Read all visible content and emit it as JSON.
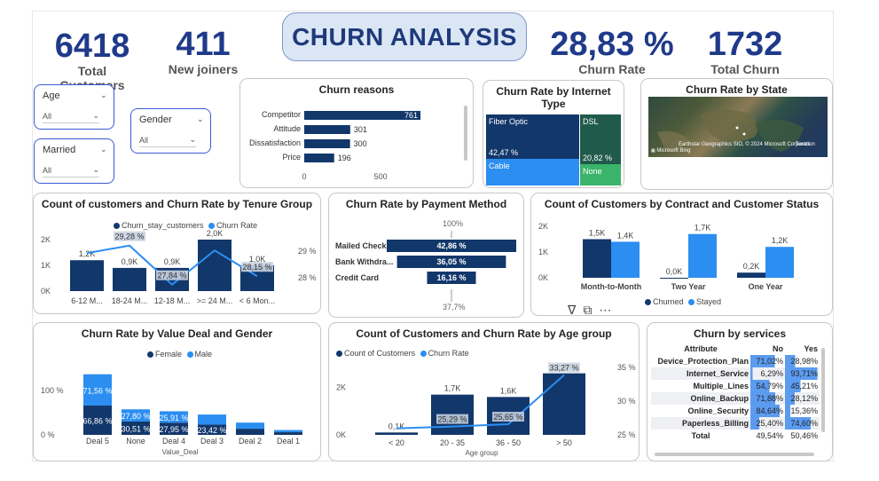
{
  "header": {
    "title": "CHURN ANALYSIS"
  },
  "kpis": {
    "total_customers": {
      "value": "6418",
      "label": "Total Customers"
    },
    "new_joiners": {
      "value": "411",
      "label": "New joiners"
    },
    "churn_rate": {
      "value": "28,83 %",
      "label": "Churn Rate"
    },
    "total_churn": {
      "value": "1732",
      "label": "Total Churn"
    }
  },
  "slicers": {
    "age": {
      "label": "Age",
      "value": "All"
    },
    "married": {
      "label": "Married",
      "value": "All"
    },
    "gender": {
      "label": "Gender",
      "value": "All"
    }
  },
  "churn_reasons": {
    "title": "Churn reasons"
  },
  "internet_type": {
    "title": "Churn Rate by Internet Type"
  },
  "state": {
    "title": "Churn Rate by State",
    "attribution": "Earthstar Geographics SIO, © 2024 Microsoft Corporation",
    "terms": "Terms",
    "brand": "Microsoft Bing"
  },
  "tenure": {
    "title": "Count of customers and Churn Rate by Tenure Group",
    "legend": [
      "Churn_stay_customers",
      "Churn Rate"
    ]
  },
  "payment": {
    "title": "Churn Rate by Payment Method",
    "top_label": "100%",
    "bottom_label": "37,7%"
  },
  "contract": {
    "title": "Count of Customers by Contract and Customer Status",
    "legend": [
      "Churned",
      "Stayed"
    ]
  },
  "value_deal": {
    "title": "Churn Rate by Value Deal and Gender",
    "legend": [
      "Female",
      "Male"
    ]
  },
  "age_group": {
    "title": "Count of Customers and Churn Rate by Age group",
    "legend": [
      "Count of Customers",
      "Churn Rate"
    ]
  },
  "services": {
    "title": "Churn by services",
    "columns": [
      "Attribute",
      "No",
      "Yes"
    ],
    "rows": [
      {
        "attr": "Device_Protection_Plan",
        "no": "71,02%",
        "yes": "28,98%",
        "no_v": 71.02,
        "yes_v": 28.98
      },
      {
        "attr": "Internet_Service",
        "no": "6,29%",
        "yes": "93,71%",
        "no_v": 6.29,
        "yes_v": 93.71
      },
      {
        "attr": "Multiple_Lines",
        "no": "54,79%",
        "yes": "45,21%",
        "no_v": 54.79,
        "yes_v": 45.21
      },
      {
        "attr": "Online_Backup",
        "no": "71,88%",
        "yes": "28,12%",
        "no_v": 71.88,
        "yes_v": 28.12
      },
      {
        "attr": "Online_Security",
        "no": "84,64%",
        "yes": "15,36%",
        "no_v": 84.64,
        "yes_v": 15.36
      },
      {
        "attr": "Paperless_Billing",
        "no": "25,40%",
        "yes": "74,60%",
        "no_v": 25.4,
        "yes_v": 74.6
      }
    ],
    "total": {
      "attr": "Total",
      "no": "49,54%",
      "yes": "50,46%"
    }
  },
  "chart_data": [
    {
      "type": "bar",
      "id": "churn_reasons",
      "title": "Churn reasons",
      "categories": [
        "Competitor",
        "Attitude",
        "Dissatisfaction",
        "Price"
      ],
      "values": [
        761,
        301,
        300,
        196
      ],
      "labels": [
        "761",
        "301",
        "300",
        "196"
      ],
      "ticks": [
        "0",
        "500"
      ],
      "xlim": [
        0,
        900
      ]
    },
    {
      "type": "heatmap",
      "id": "internet_type",
      "title": "Churn Rate by Internet Type",
      "categories": [
        "Fiber Optic",
        "Cable",
        "DSL",
        "None"
      ],
      "values": [
        42.47,
        null,
        20.82,
        null
      ],
      "labels": [
        "42,47 %",
        "",
        "20,82 %",
        ""
      ],
      "colors": {
        "Fiber Optic": "#12376b",
        "Cable": "#2b8ef0",
        "DSL": "#1f5a4a",
        "None": "#3ab46a"
      }
    },
    {
      "type": "bar",
      "id": "tenure",
      "title": "Count of customers and Churn Rate by Tenure Group",
      "categories": [
        "6-12 M...",
        "18-24 M...",
        "12-18 M...",
        ">= 24 M...",
        "< 6 Mon..."
      ],
      "series": [
        {
          "name": "Churn_stay_customers",
          "values": [
            1200,
            900,
            900,
            2000,
            1000
          ],
          "labels": [
            "1,2K",
            "0,9K",
            "0,9K",
            "2,0K",
            "1,0K"
          ]
        },
        {
          "name": "Churn Rate",
          "values": [
            29.0,
            29.28,
            27.84,
            29.1,
            28.15
          ],
          "labels": [
            "",
            "29,28 %",
            "27,84 %",
            "",
            "28,15 %"
          ]
        }
      ],
      "y_ticks": [
        "0K",
        "1K",
        "2K"
      ],
      "y2_ticks": [
        "28 %",
        "29 %"
      ],
      "ylim": [
        0,
        2000
      ]
    },
    {
      "type": "bar",
      "id": "payment",
      "title": "Churn Rate by Payment Method",
      "categories": [
        "Mailed Check",
        "Bank Withdra...",
        "Credit Card"
      ],
      "values": [
        42.86,
        36.05,
        16.16
      ],
      "labels": [
        "42,86 %",
        "36,05 %",
        "16,16 %"
      ],
      "xlim": [
        0,
        50
      ]
    },
    {
      "type": "bar",
      "id": "contract",
      "title": "Count of Customers by Contract and Customer Status",
      "categories": [
        "Month-to-Month",
        "Two Year",
        "One Year"
      ],
      "series": [
        {
          "name": "Churned",
          "values": [
            1500,
            0,
            200
          ],
          "labels": [
            "1,5K",
            "0,0K",
            "0,2K"
          ]
        },
        {
          "name": "Stayed",
          "values": [
            1400,
            1700,
            1200
          ],
          "labels": [
            "1,4K",
            "1,7K",
            "1,2K"
          ]
        }
      ],
      "y_ticks": [
        "0K",
        "1K",
        "2K"
      ],
      "ylim": [
        0,
        2000
      ]
    },
    {
      "type": "bar",
      "id": "value_deal",
      "title": "Churn Rate by Value Deal and Gender",
      "categories": [
        "Deal 5",
        "None",
        "Deal 4",
        "Deal 3",
        "Deal 2",
        "Deal 1"
      ],
      "series": [
        {
          "name": "Female",
          "values": [
            66.86,
            30.51,
            27.95,
            23.42,
            14,
            6
          ],
          "labels": [
            "66,86 %",
            "30,51 %",
            "27,95 %",
            "23,42 %",
            "",
            ""
          ]
        },
        {
          "name": "Male",
          "values": [
            71.56,
            27.8,
            25.91,
            23,
            14,
            5
          ],
          "labels": [
            "71,56 %",
            "27,80 %",
            "25,91 %",
            "",
            "",
            ""
          ]
        }
      ],
      "xlabel": "Value_Deal",
      "y_ticks": [
        "0 %",
        "100 %"
      ],
      "ylim": [
        0,
        150
      ]
    },
    {
      "type": "bar",
      "id": "age_group",
      "title": "Count of Customers and Churn Rate by Age group",
      "categories": [
        "< 20",
        "20 - 35",
        "36 - 50",
        "> 50"
      ],
      "series": [
        {
          "name": "Count of Customers",
          "values": [
            100,
            1700,
            1600,
            2600
          ],
          "labels": [
            "0,1K",
            "1,7K",
            "1,6K",
            "2,6K"
          ]
        },
        {
          "name": "Churn Rate",
          "values": [
            25.0,
            25.29,
            25.65,
            33.27
          ],
          "labels": [
            "",
            "25,29 %",
            "25,65 %",
            "33,27 %"
          ]
        }
      ],
      "xlabel": "Age group",
      "y_ticks": [
        "0K",
        "2K"
      ],
      "y2_ticks": [
        "25 %",
        "30 %",
        "35 %"
      ],
      "ylim": [
        0,
        3000
      ],
      "y2lim": [
        24,
        35
      ]
    }
  ]
}
